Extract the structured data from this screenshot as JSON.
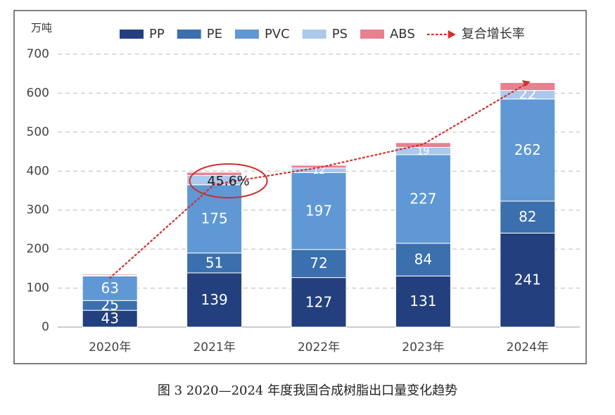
{
  "chart_data": {
    "type": "stacked_bar",
    "caption": "图 3  2020—2024 年度我国合成树脂出口量变化趋势",
    "y_label": "万吨",
    "categories": [
      "2020年",
      "2021年",
      "2022年",
      "2023年",
      "2024年"
    ],
    "series": [
      {
        "name": "PP",
        "color": "#233f7e",
        "values": [
          43,
          139,
          127,
          131,
          241
        ]
      },
      {
        "name": "PE",
        "color": "#3b6fae",
        "values": [
          25,
          51,
          72,
          84,
          82
        ]
      },
      {
        "name": "PVC",
        "color": "#5f98d4",
        "values": [
          63,
          175,
          197,
          227,
          262
        ]
      },
      {
        "name": "PS",
        "color": "#abc9ec",
        "values": [
          2,
          24,
          12,
          19,
          22
        ],
        "value_labels": [
          null,
          null,
          "12",
          "19",
          "22"
        ]
      },
      {
        "name": "ABS",
        "color": "#e8808f",
        "values": [
          3,
          8,
          7,
          12,
          20
        ],
        "value_labels": [
          null,
          null,
          null,
          null,
          null
        ]
      }
    ],
    "line": {
      "name": "复合增长率",
      "color": "#d0302f",
      "values": [
        126,
        366,
        409,
        469,
        626
      ]
    },
    "annotation": "45.6%",
    "ylim": [
      0,
      700
    ],
    "yticks": [
      0,
      100,
      200,
      300,
      400,
      500,
      600,
      700
    ],
    "grid": true
  }
}
